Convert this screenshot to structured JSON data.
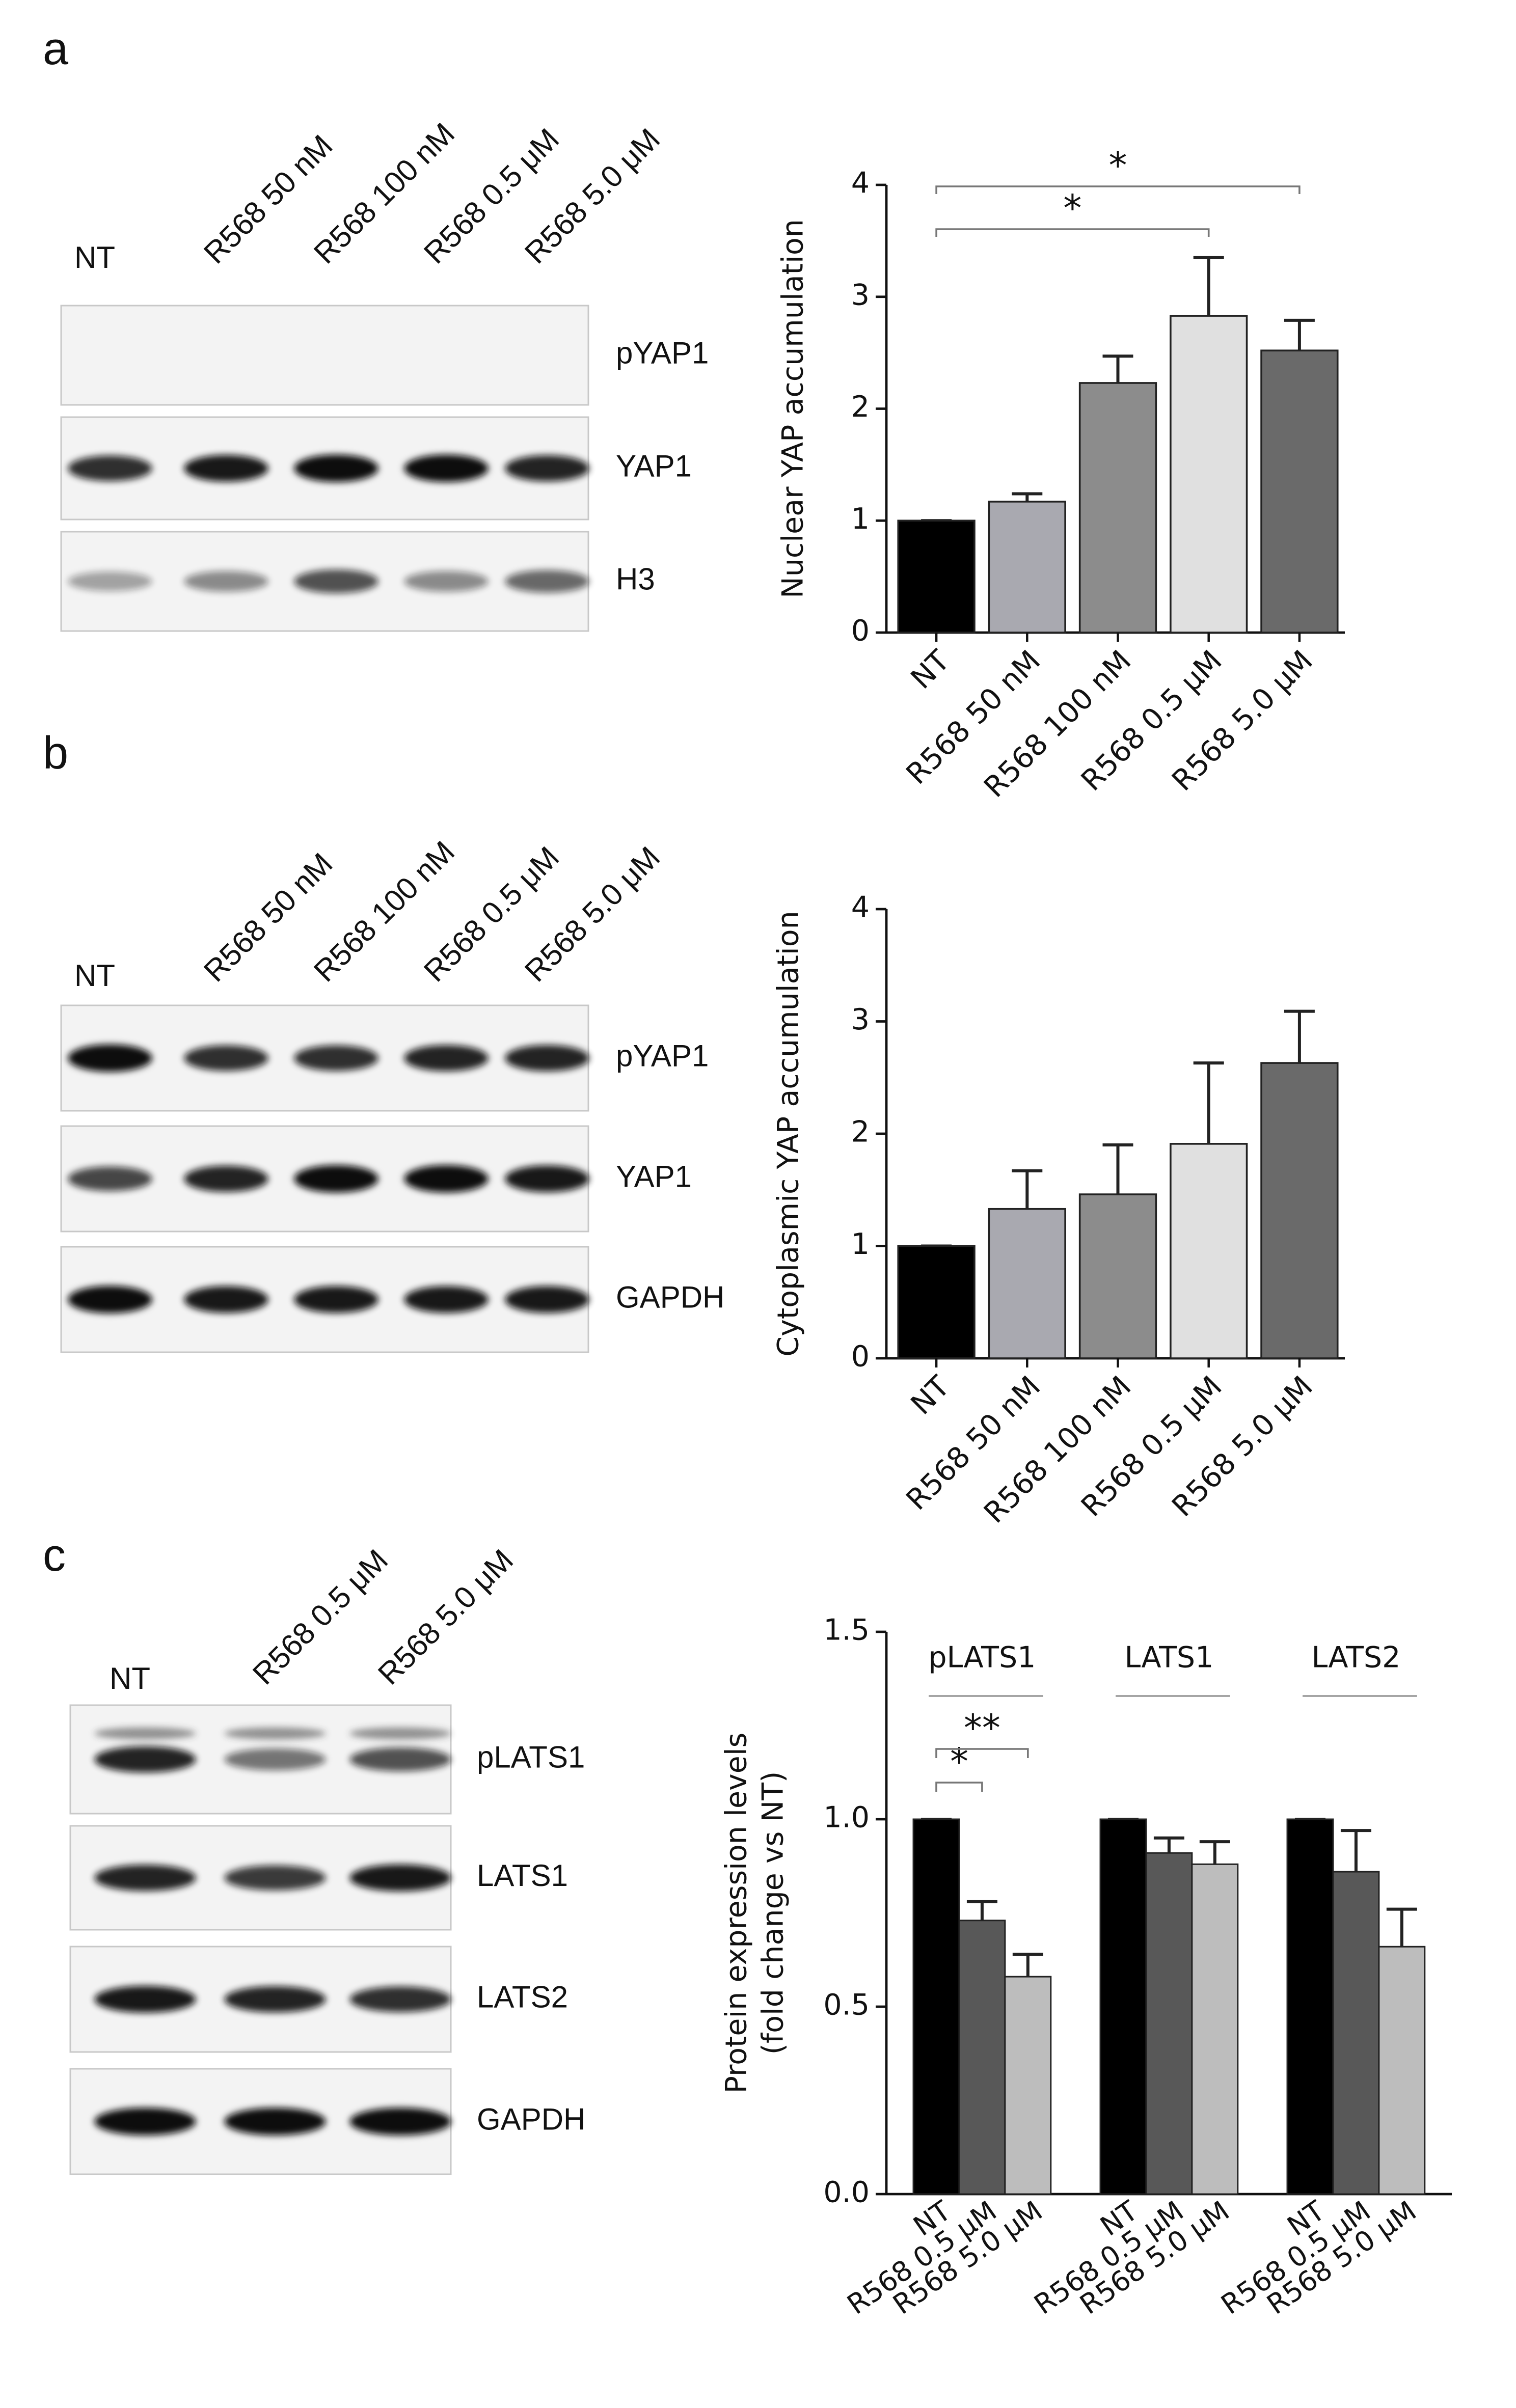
{
  "panel_labels": [
    "a",
    "b",
    "c"
  ],
  "blots": [
    {
      "lanes": [
        "NT",
        "R568 50 nM",
        "R568 100 nM",
        "R568 0.5 μM",
        "R568 5.0 μM"
      ],
      "bands": [
        "pYAP1",
        "YAP1",
        "H3"
      ]
    },
    {
      "lanes": [
        "NT",
        "R568 50 nM",
        "R568 100 nM",
        "R568 0.5 μM",
        "R568 5.0 μM"
      ],
      "bands": [
        "pYAP1",
        "YAP1",
        "GAPDH"
      ]
    },
    {
      "lanes": [
        "NT",
        "R568 0.5 μM",
        "R568 5.0 μM"
      ],
      "bands": [
        "pLATS1",
        "LATS1",
        "LATS2",
        "GAPDH"
      ]
    }
  ],
  "chart_data": [
    {
      "type": "bar",
      "ylabel": "Nuclear YAP accumulation",
      "categories": [
        "NT",
        "R568 50 nM",
        "R568 100 nM",
        "R568 0.5 µM",
        "R568 5.0 µM"
      ],
      "values": [
        1,
        1.17,
        2.23,
        2.83,
        2.52
      ],
      "errors": [
        0,
        0.07,
        0.24,
        0.52,
        0.27
      ],
      "colors": [
        "#000000",
        "#a9a9b0",
        "#8c8c8c",
        "#e0e0e0",
        "#6a6a6a"
      ],
      "ylim": [
        0,
        4
      ],
      "yticks": [
        0,
        1,
        2,
        3,
        4
      ],
      "significance": [
        {
          "between": [
            0,
            3
          ],
          "label": "*"
        },
        {
          "between": [
            0,
            4
          ],
          "label": "*"
        }
      ]
    },
    {
      "type": "bar",
      "ylabel": "Cytoplasmic YAP accumulation",
      "categories": [
        "NT",
        "R568 50 nM",
        "R568 100 nM",
        "R568 0.5 µM",
        "R568 5.0 µM"
      ],
      "values": [
        1,
        1.33,
        1.46,
        1.91,
        2.63
      ],
      "errors": [
        0,
        0.34,
        0.44,
        0.72,
        0.46
      ],
      "colors": [
        "#000000",
        "#a9a9b0",
        "#8c8c8c",
        "#e0e0e0",
        "#6a6a6a"
      ],
      "ylim": [
        0,
        4
      ],
      "yticks": [
        0,
        1,
        2,
        3,
        4
      ]
    },
    {
      "type": "grouped_bar",
      "ylabel": [
        "Protein expression levels",
        "(fold change vs NT)"
      ],
      "groups": [
        "pLATS1",
        "LATS1",
        "LATS2"
      ],
      "series": [
        {
          "name": "NT",
          "color": "#000000",
          "values": [
            1,
            1,
            1
          ],
          "errors": [
            0,
            0,
            0
          ]
        },
        {
          "name": "R568 0.5 µM",
          "color": "#585858",
          "values": [
            0.73,
            0.91,
            0.86
          ],
          "errors": [
            0.05,
            0.04,
            0.11
          ]
        },
        {
          "name": "R568 5.0 µM",
          "color": "#bdbdbd",
          "values": [
            0.58,
            0.88,
            0.66
          ],
          "errors": [
            0.06,
            0.06,
            0.1
          ]
        }
      ],
      "ylim": [
        0,
        1.5
      ],
      "yticks": [
        {
          "value": 0,
          "label": "0.0"
        },
        0.5,
        {
          "value": 1,
          "label": "1.0"
        },
        1.5
      ],
      "significance": [
        {
          "group": 0,
          "between": [
            0,
            1
          ],
          "label": "*"
        },
        {
          "group": 0,
          "between": [
            0,
            2
          ],
          "label": "**"
        }
      ]
    }
  ]
}
